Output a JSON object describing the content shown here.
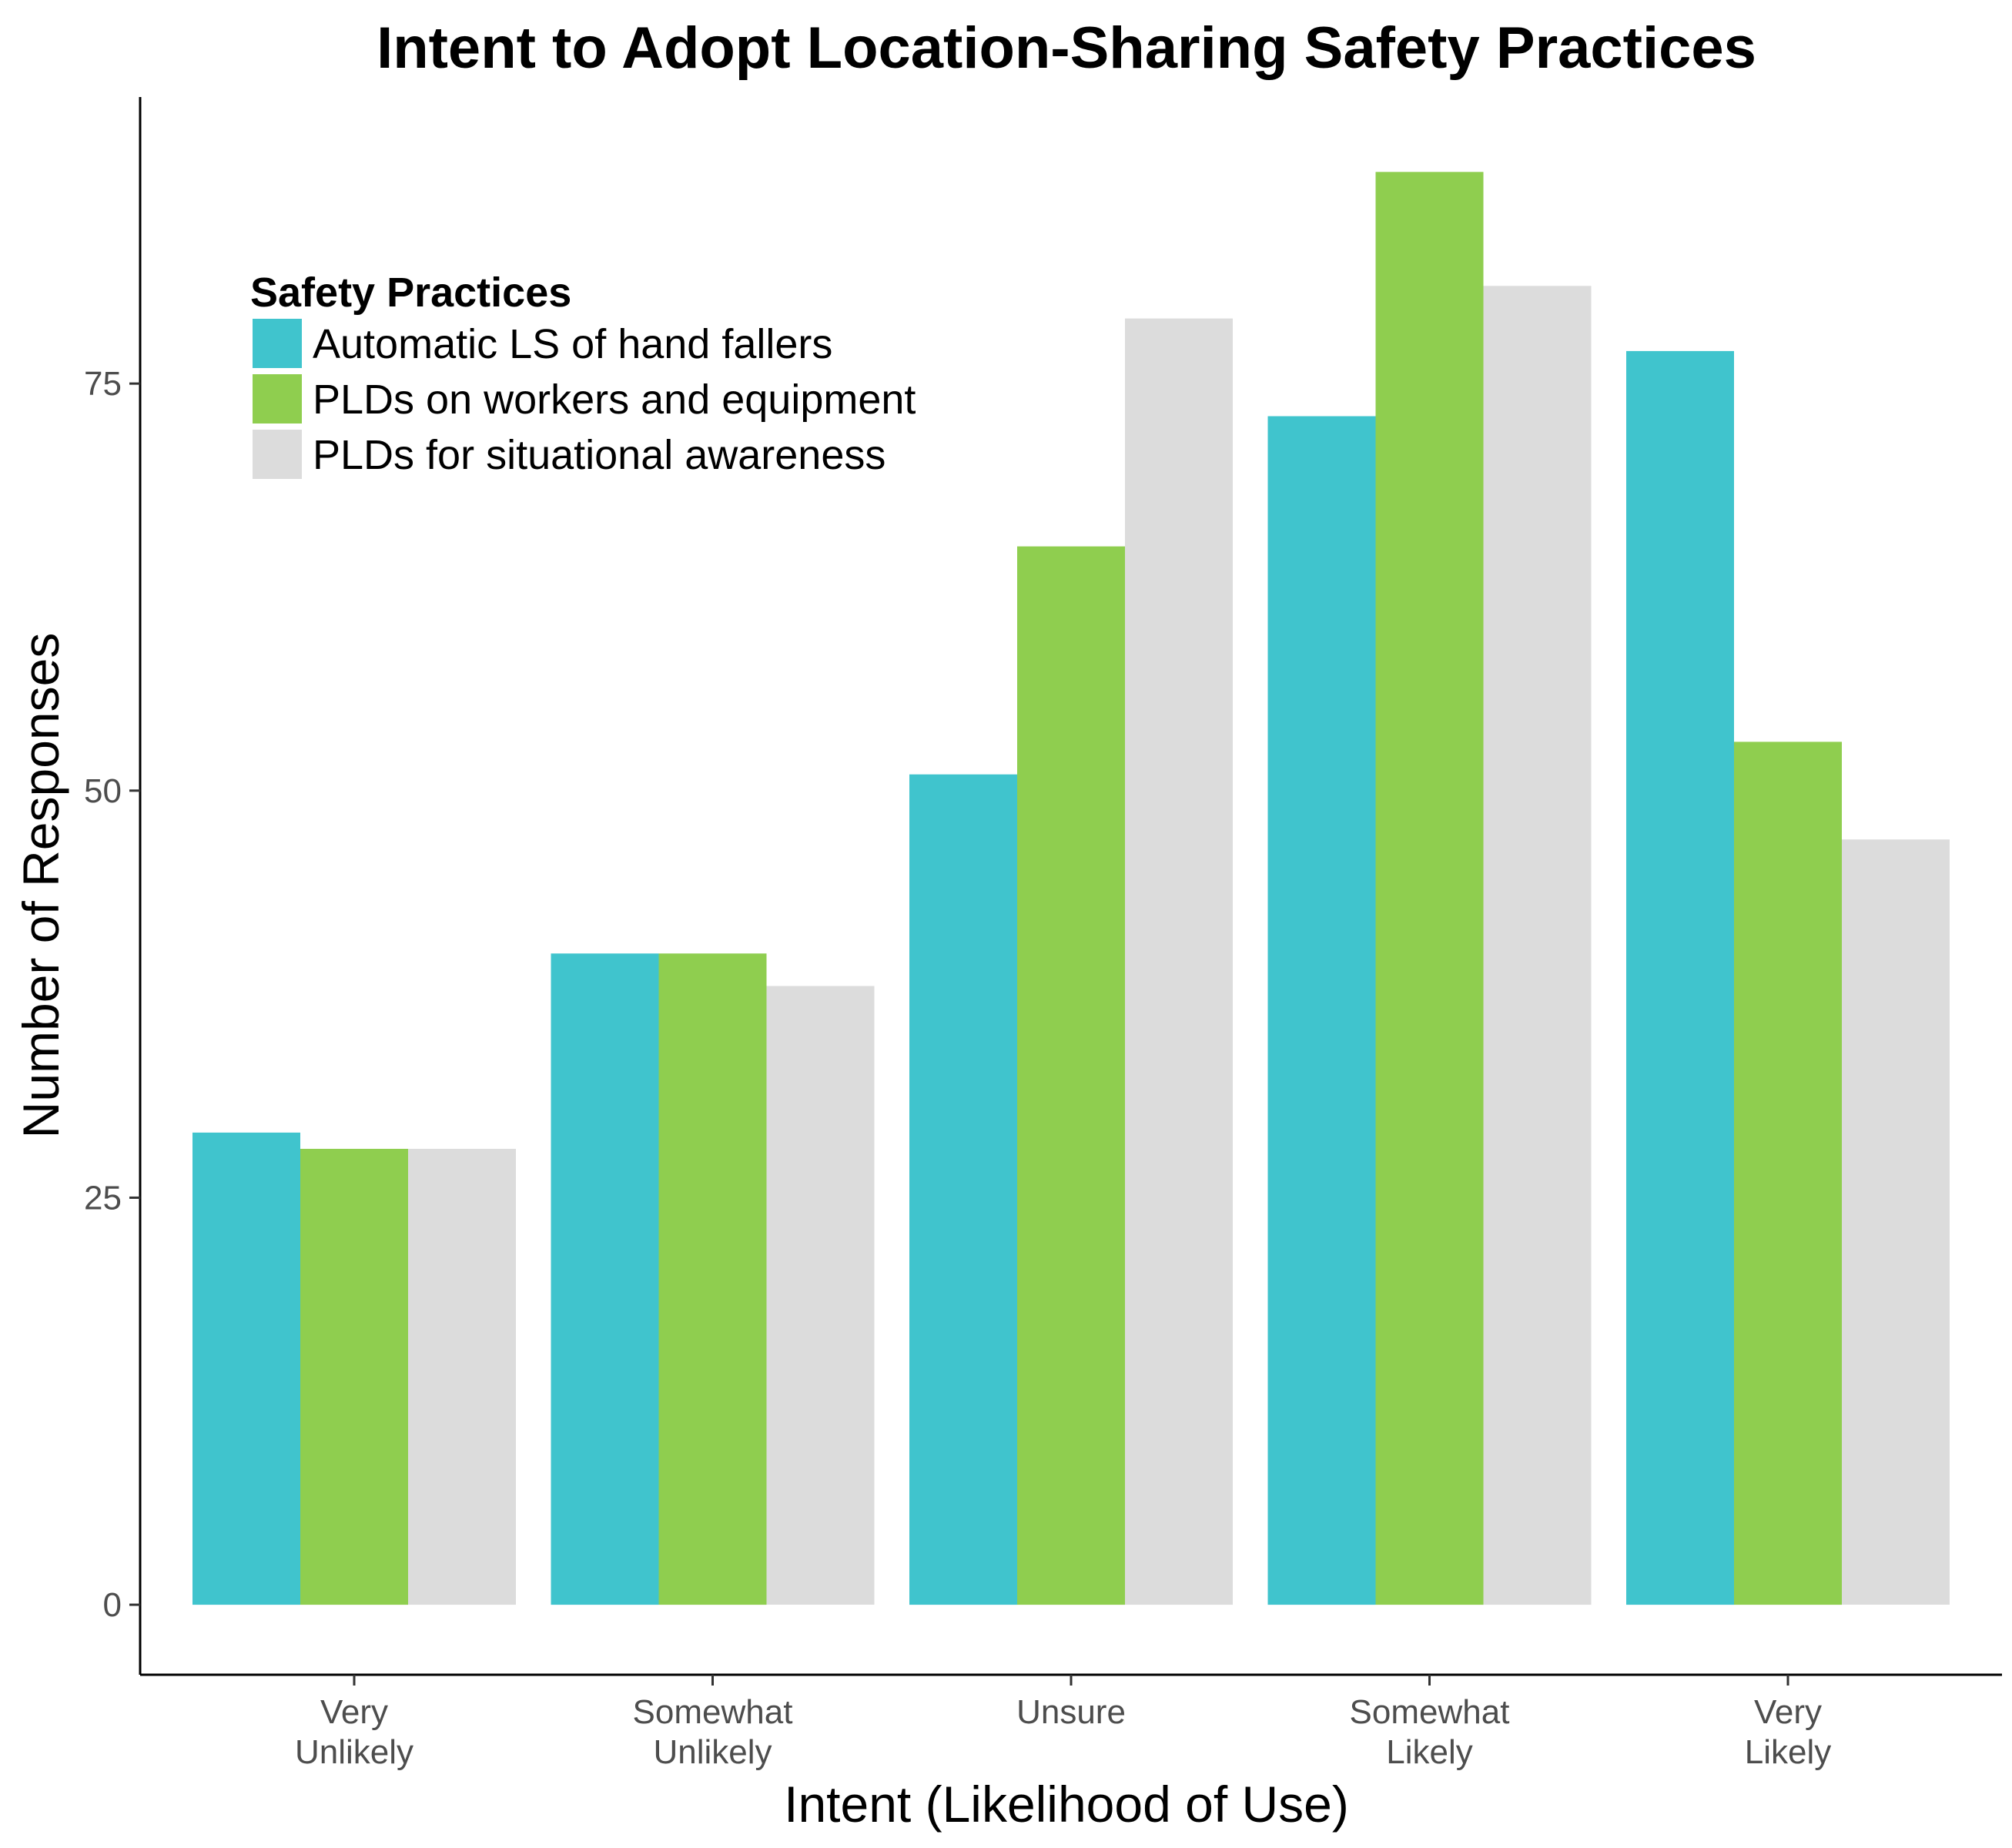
{
  "chart_data": {
    "type": "bar",
    "title": "Intent to Adopt Location-Sharing Safety Practices",
    "xlabel": "Intent (Likelihood of Use)",
    "ylabel": "Number of Responses",
    "categories": [
      [
        "Very",
        "Unlikely"
      ],
      [
        "Somewhat",
        "Unlikely"
      ],
      [
        "Unsure"
      ],
      [
        "Somewhat",
        "Likely"
      ],
      [
        "Very",
        "Likely"
      ]
    ],
    "series": [
      {
        "name": "Automatic LS of hand fallers",
        "color": "#40c4cd",
        "values": [
          29,
          40,
          51,
          73,
          77
        ]
      },
      {
        "name": "PLDs on workers and equipment",
        "color": "#8fce4f",
        "values": [
          28,
          40,
          65,
          88,
          53
        ]
      },
      {
        "name": "PLDs for situational awareness",
        "color": "#dcdcdc",
        "values": [
          28,
          38,
          79,
          81,
          47
        ]
      }
    ],
    "ylim": [
      -4.3,
      92.6
    ],
    "yticks": [
      0,
      25,
      50,
      75
    ],
    "grid": false,
    "legend": {
      "title": "Safety Practices",
      "position": "top-left"
    }
  }
}
